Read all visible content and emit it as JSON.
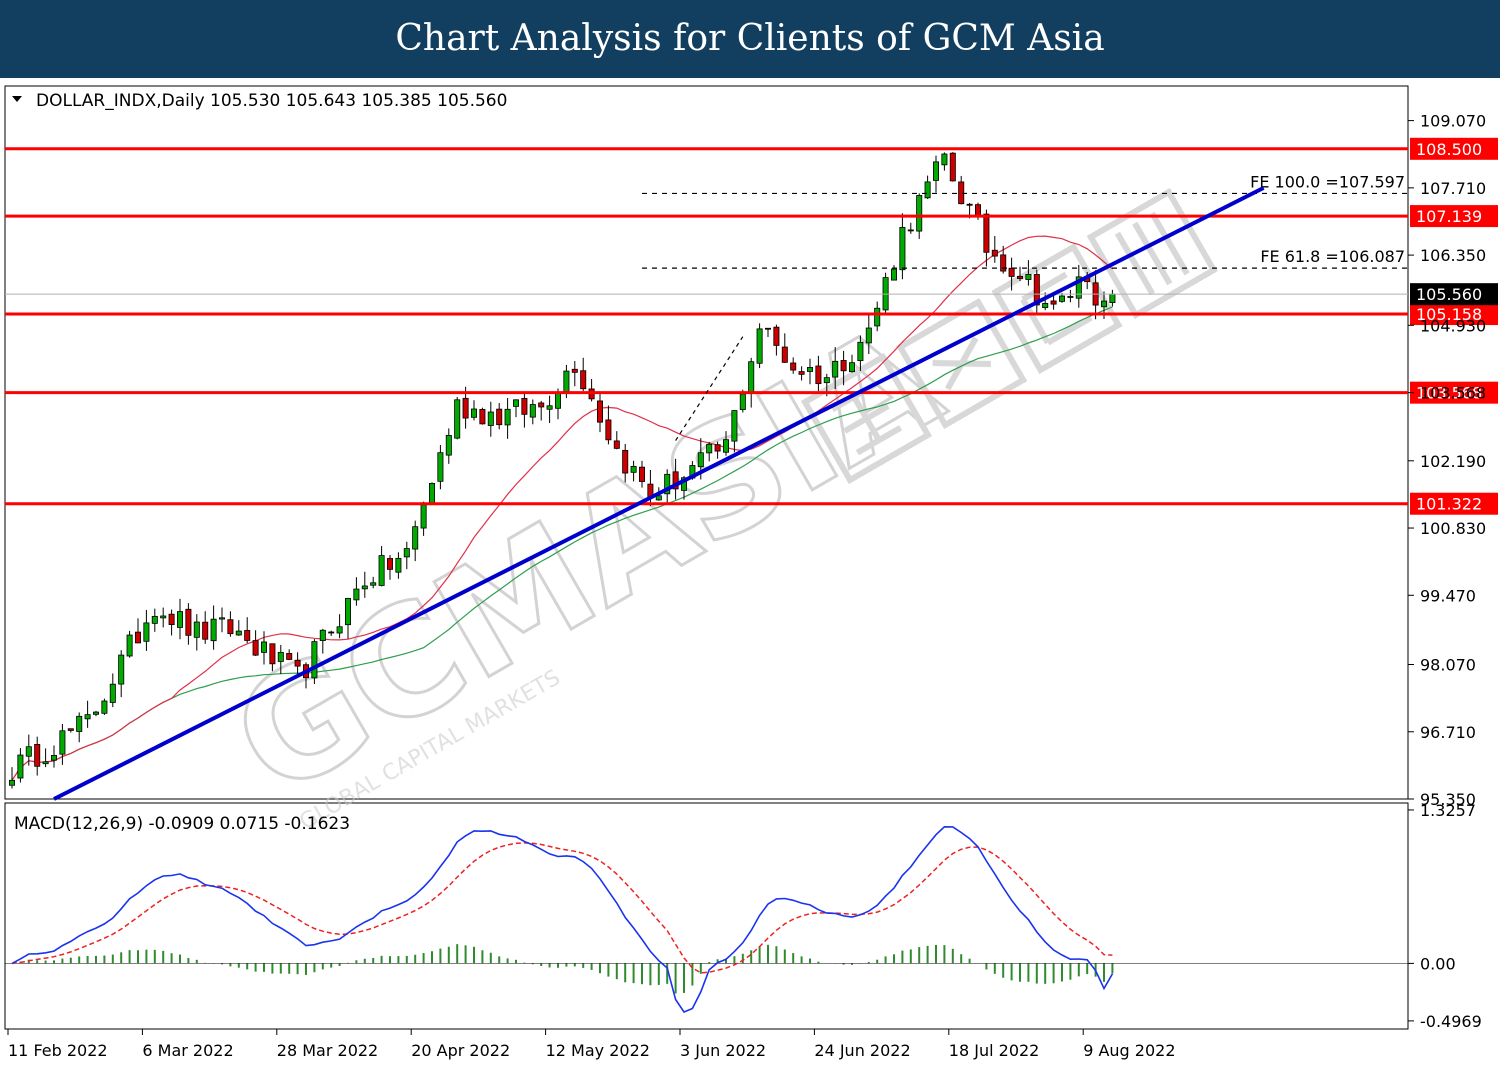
{
  "banner_title": "Chart Analysis for Clients of GCM Asia",
  "watermark": {
    "main": "GCMASIA",
    "chinese": "Chinese logo characters",
    "sub": "GLOBAL CAPITAL MARKETS"
  },
  "chart_data": [
    {
      "type": "candlestick",
      "header": "DOLLAR_INDX,Daily  105.530 105.643 105.385 105.560",
      "symbol": "DOLLAR_INDX",
      "timeframe": "Daily",
      "ohlc_readout": [
        105.53,
        105.643,
        105.385,
        105.56
      ],
      "ylim": [
        95.35,
        109.77
      ],
      "yticks": [
        95.35,
        96.71,
        98.07,
        99.47,
        100.83,
        102.19,
        103.568,
        104.93,
        106.35,
        107.71,
        109.07
      ],
      "ytick_labels": [
        "95.350",
        "96.710",
        "98.070",
        "99.470",
        "100.830",
        "102.190",
        "103.568",
        "104.930",
        "106.350",
        "107.710",
        "109.070"
      ],
      "x_labels": [
        "11 Feb 2022",
        "6 Mar 2022",
        "28 Mar 2022",
        "20 Apr 2022",
        "12 May 2022",
        "3 Jun 2022",
        "24 Jun 2022",
        "18 Jul 2022",
        "9 Aug 2022"
      ],
      "x_label_positions": [
        0,
        16,
        32,
        48,
        64,
        80,
        96,
        112,
        128
      ],
      "num_bars": 132,
      "current_price": {
        "value": 105.56,
        "label": "105.560"
      },
      "horizontal_levels": [
        {
          "value": 108.5,
          "label": "108.500",
          "color": "#ff0000"
        },
        {
          "value": 107.139,
          "label": "107.139",
          "color": "#ff0000"
        },
        {
          "value": 105.158,
          "label": "105.158",
          "color": "#ff0000"
        },
        {
          "value": 103.568,
          "label": "103.568",
          "color": "#ff0000"
        },
        {
          "value": 101.322,
          "label": "101.322",
          "color": "#ff0000"
        }
      ],
      "fib_extensions": [
        {
          "value": 107.597,
          "label": "FE 100.0 =107.597",
          "x_start": 75
        },
        {
          "value": 106.087,
          "label": "FE 61.8 =106.087",
          "x_start": 75
        }
      ],
      "trendline": {
        "x1": 5,
        "y1": 95.35,
        "x2": 149,
        "y2": 107.71,
        "color": "#0000cc"
      },
      "fib_projection_line": {
        "x1": 79,
        "y1": 102.6,
        "x2": 87,
        "y2": 104.7
      },
      "ma_fast_color": "#e0304a",
      "ma_slow_color": "#2e9e4e",
      "bull_color": "#00aa00",
      "bear_color": "#cc0000",
      "anchors": [
        [
          0,
          95.95
        ],
        [
          9,
          96.9
        ],
        [
          17,
          99.3
        ],
        [
          22,
          98.7
        ],
        [
          26,
          98.8
        ],
        [
          34,
          97.8
        ],
        [
          42,
          99.8
        ],
        [
          47,
          100.3
        ],
        [
          53,
          103.3
        ],
        [
          58,
          103.1
        ],
        [
          63,
          103.3
        ],
        [
          67,
          104.2
        ],
        [
          72,
          102.4
        ],
        [
          76,
          101.5
        ],
        [
          80,
          101.9
        ],
        [
          85,
          102.5
        ],
        [
          89,
          104.9
        ],
        [
          93,
          104.1
        ],
        [
          97,
          103.9
        ],
        [
          102,
          104.8
        ],
        [
          106,
          106.8
        ],
        [
          111,
          108.3
        ],
        [
          116,
          106.5
        ],
        [
          120,
          106.0
        ],
        [
          124,
          105.2
        ],
        [
          128,
          106.0
        ],
        [
          131,
          104.8
        ],
        [
          133,
          105.56
        ]
      ]
    },
    {
      "type": "macd",
      "header": "MACD(12,26,9) -0.0909 0.0715 -0.1623",
      "params": [
        12,
        26,
        9
      ],
      "values": [
        -0.0909,
        0.0715,
        -0.1623
      ],
      "ylim": [
        -0.5669,
        1.3857
      ],
      "yticks": [
        1.3257,
        0.0,
        -0.4969
      ],
      "ytick_labels": [
        "1.3257",
        "0.00",
        "-0.4969"
      ],
      "histogram_color": "#2e8b2e",
      "signal_color": "#ee2222",
      "macd_color": "#1a33ee"
    }
  ]
}
